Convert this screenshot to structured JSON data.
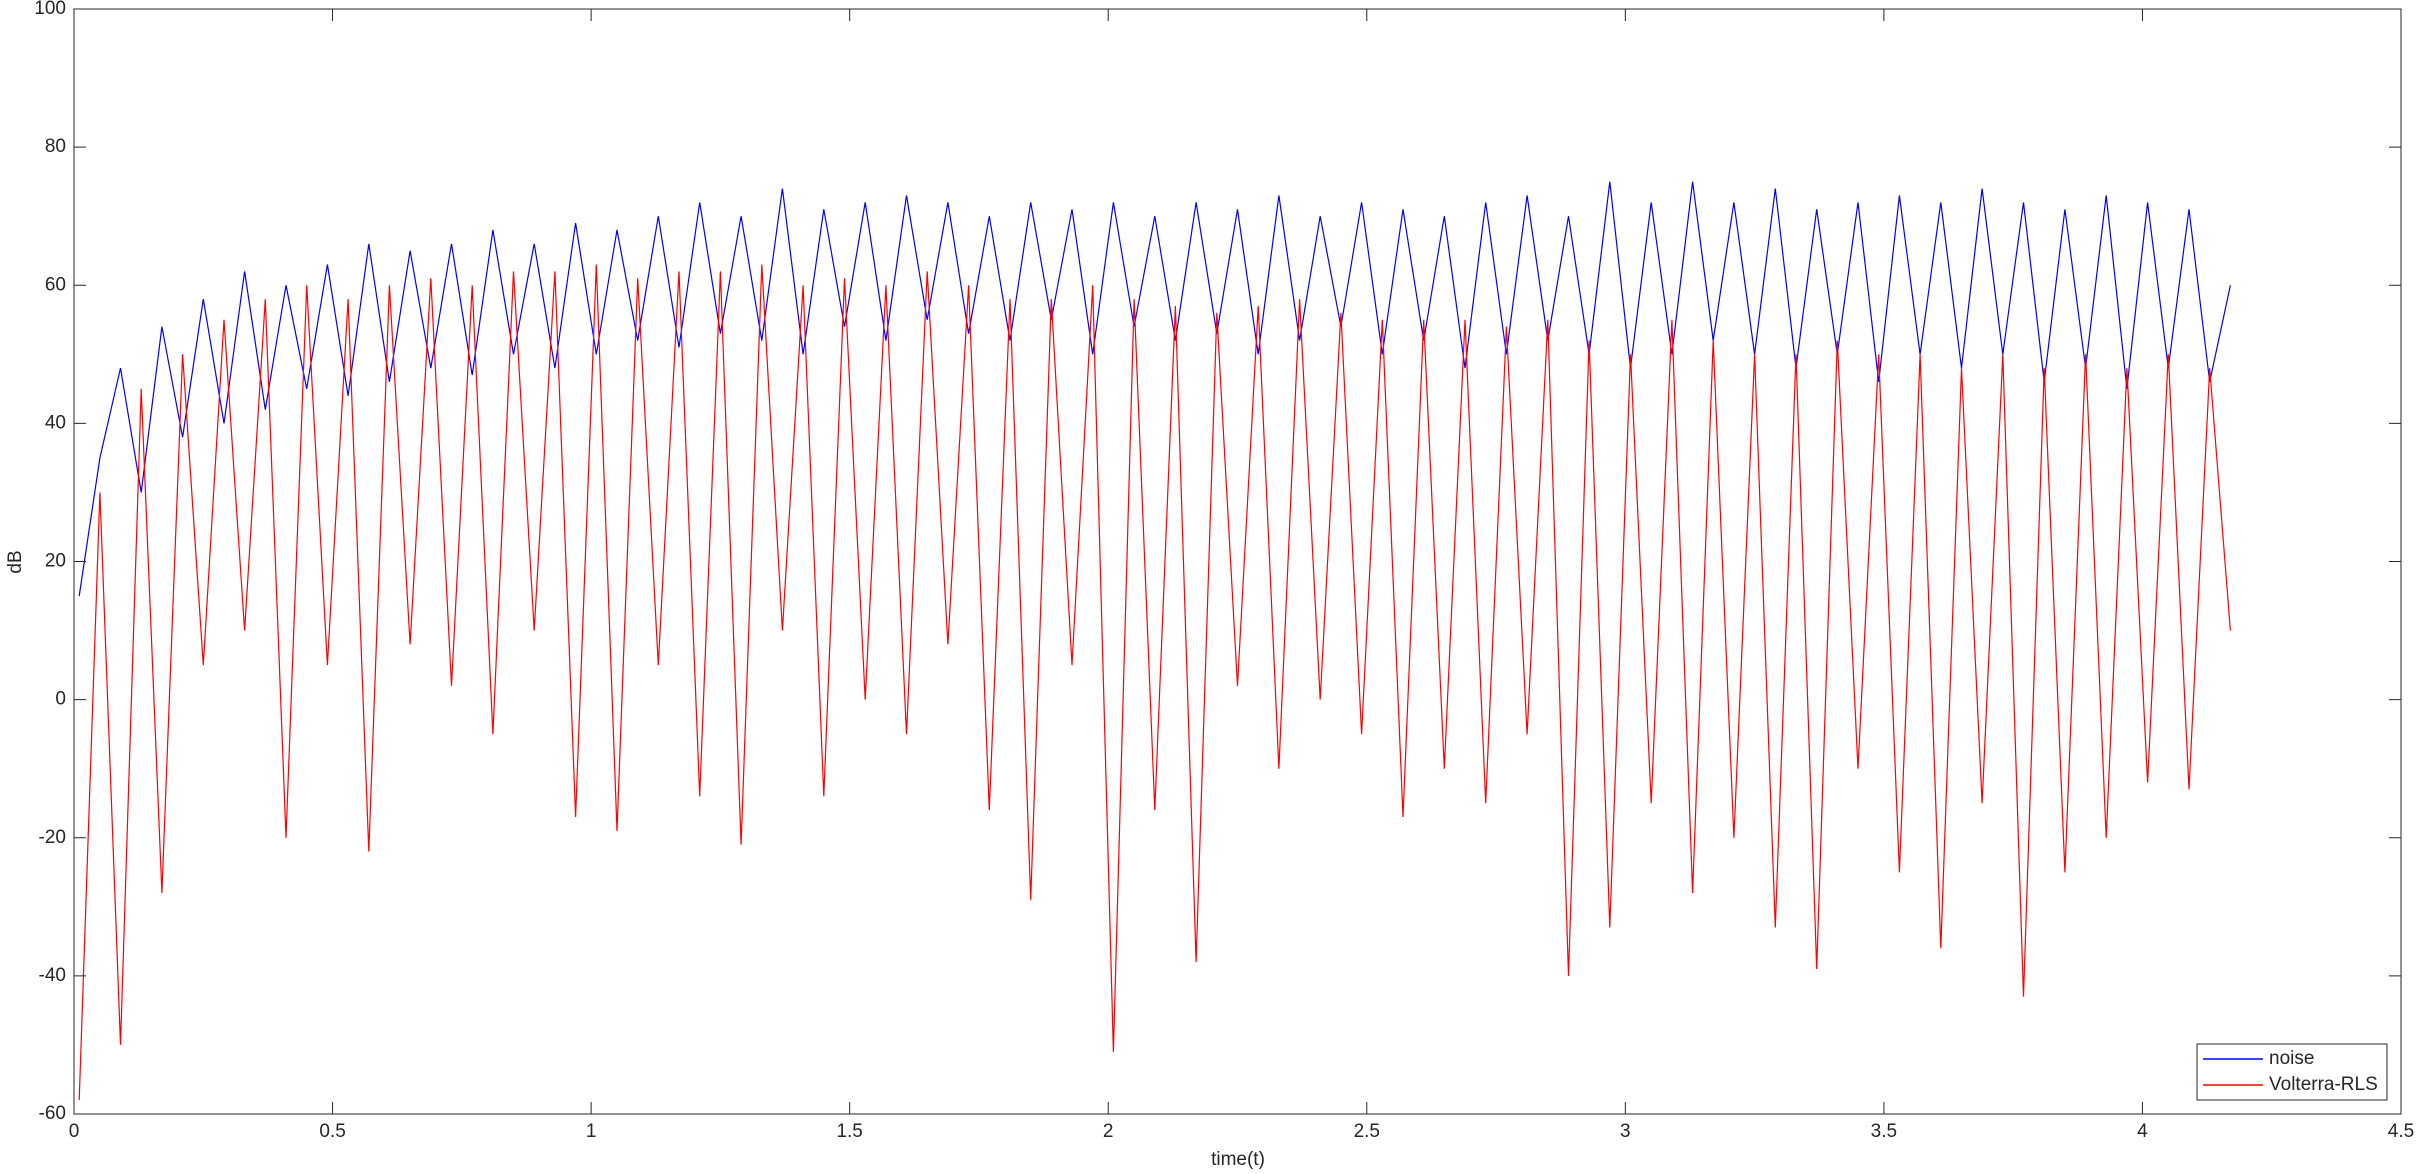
{
  "chart_data": {
    "type": "line",
    "xlabel": "time(t)",
    "ylabel": "dB",
    "xlim": [
      0,
      4.5
    ],
    "xticks": [
      0,
      0.5,
      1,
      1.5,
      2,
      2.5,
      3,
      3.5,
      4,
      4.5
    ],
    "ylim": [
      -60,
      100
    ],
    "yticks": [
      -60,
      -40,
      -20,
      0,
      20,
      40,
      60,
      80,
      100
    ],
    "grid": false,
    "legend": "lower right",
    "x": [
      0.01,
      0.05,
      0.09,
      0.13,
      0.17,
      0.21,
      0.25,
      0.29,
      0.33,
      0.37,
      0.41,
      0.45,
      0.49,
      0.53,
      0.57,
      0.61,
      0.65,
      0.69,
      0.73,
      0.77,
      0.81,
      0.85,
      0.89,
      0.93,
      0.97,
      1.01,
      1.05,
      1.09,
      1.13,
      1.17,
      1.21,
      1.25,
      1.29,
      1.33,
      1.37,
      1.41,
      1.45,
      1.49,
      1.53,
      1.57,
      1.61,
      1.65,
      1.69,
      1.73,
      1.77,
      1.81,
      1.85,
      1.89,
      1.93,
      1.97,
      2.01,
      2.05,
      2.09,
      2.13,
      2.17,
      2.21,
      2.25,
      2.29,
      2.33,
      2.37,
      2.41,
      2.45,
      2.49,
      2.53,
      2.57,
      2.61,
      2.65,
      2.69,
      2.73,
      2.77,
      2.81,
      2.85,
      2.89,
      2.93,
      2.97,
      3.01,
      3.05,
      3.09,
      3.13,
      3.17,
      3.21,
      3.25,
      3.29,
      3.33,
      3.37,
      3.41,
      3.45,
      3.49,
      3.53,
      3.57,
      3.61,
      3.65,
      3.69,
      3.73,
      3.77,
      3.81,
      3.85,
      3.89,
      3.93,
      3.97,
      4.01,
      4.05,
      4.09,
      4.13,
      4.17
    ],
    "series": [
      {
        "name": "noise",
        "color": "#0000ff",
        "values": [
          15,
          35,
          48,
          30,
          54,
          38,
          58,
          40,
          62,
          42,
          60,
          45,
          63,
          44,
          66,
          46,
          65,
          48,
          66,
          47,
          68,
          50,
          66,
          48,
          69,
          50,
          68,
          52,
          70,
          51,
          72,
          53,
          70,
          52,
          74,
          50,
          71,
          54,
          72,
          52,
          73,
          55,
          72,
          53,
          70,
          52,
          72,
          55,
          71,
          50,
          72,
          54,
          70,
          52,
          72,
          53,
          71,
          50,
          73,
          52,
          70,
          54,
          72,
          50,
          71,
          52,
          70,
          48,
          72,
          50,
          73,
          52,
          70,
          50,
          75,
          48,
          72,
          50,
          75,
          52,
          72,
          50,
          74,
          48,
          71,
          50,
          72,
          46,
          73,
          50,
          72,
          48,
          74,
          50,
          72,
          46,
          71,
          48,
          73,
          45,
          72,
          48,
          71,
          46,
          60
        ]
      },
      {
        "name": "Volterra-RLS",
        "color": "#ff0000",
        "values": [
          -58,
          30,
          -50,
          45,
          -28,
          50,
          5,
          55,
          10,
          58,
          -20,
          60,
          5,
          58,
          -22,
          60,
          8,
          61,
          2,
          60,
          -5,
          62,
          10,
          62,
          -17,
          63,
          -19,
          61,
          5,
          62,
          -14,
          62,
          -21,
          63,
          10,
          60,
          -14,
          61,
          0,
          60,
          -5,
          62,
          8,
          60,
          -16,
          58,
          -29,
          58,
          5,
          60,
          -51,
          58,
          -16,
          57,
          -38,
          56,
          2,
          57,
          -10,
          58,
          0,
          56,
          -5,
          55,
          -17,
          55,
          -10,
          55,
          -15,
          54,
          -5,
          55,
          -40,
          52,
          -33,
          50,
          -15,
          55,
          -28,
          52,
          -20,
          50,
          -33,
          50,
          -39,
          52,
          -10,
          50,
          -25,
          50,
          -36,
          48,
          -15,
          50,
          -43,
          48,
          -25,
          50,
          -20,
          48,
          -12,
          50,
          -13,
          48,
          10
        ]
      }
    ]
  }
}
